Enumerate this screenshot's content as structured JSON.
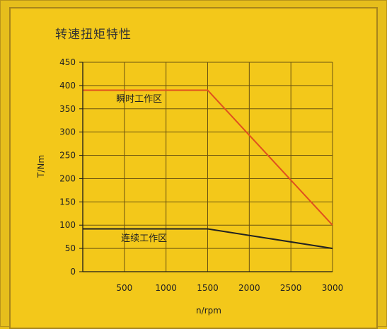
{
  "chart_data": {
    "type": "line",
    "title": "转速扭矩特性",
    "xlabel": "n/rpm",
    "ylabel": "T/Nm",
    "xlim": [
      0,
      3000
    ],
    "ylim": [
      0,
      450
    ],
    "x_ticks": [
      500,
      1000,
      1500,
      2000,
      2500,
      3000
    ],
    "y_ticks": [
      0,
      50,
      100,
      150,
      200,
      250,
      300,
      350,
      400,
      450
    ],
    "grid": true,
    "series": [
      {
        "color": "#e0511e",
        "x": [
          0,
          1500,
          3000
        ],
        "y": [
          390,
          390,
          100
        ]
      },
      {
        "color": "#222222",
        "x": [
          0,
          1500,
          3000
        ],
        "y": [
          92,
          92,
          50
        ]
      }
    ],
    "annotations": [
      {
        "text": "瞬时工作区",
        "x": 400,
        "y": 365
      },
      {
        "text": "连续工作区",
        "x": 460,
        "y": 65
      }
    ],
    "colors": {
      "background": "#f3c81a",
      "grid": "#6b5410",
      "axis": "#1a1a1a"
    }
  }
}
